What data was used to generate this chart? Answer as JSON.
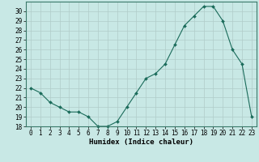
{
  "x": [
    0,
    1,
    2,
    3,
    4,
    5,
    6,
    7,
    8,
    9,
    10,
    11,
    12,
    13,
    14,
    15,
    16,
    17,
    18,
    19,
    20,
    21,
    22,
    23
  ],
  "y": [
    22,
    21.5,
    20.5,
    20,
    19.5,
    19.5,
    19,
    18,
    18,
    18.5,
    20,
    21.5,
    23,
    23.5,
    24.5,
    26.5,
    28.5,
    29.5,
    30.5,
    30.5,
    29,
    26,
    24.5,
    19
  ],
  "xlabel": "Humidex (Indice chaleur)",
  "xlim": [
    -0.5,
    23.5
  ],
  "ylim": [
    18,
    31
  ],
  "yticks": [
    18,
    19,
    20,
    21,
    22,
    23,
    24,
    25,
    26,
    27,
    28,
    29,
    30
  ],
  "xticks": [
    0,
    1,
    2,
    3,
    4,
    5,
    6,
    7,
    8,
    9,
    10,
    11,
    12,
    13,
    14,
    15,
    16,
    17,
    18,
    19,
    20,
    21,
    22,
    23
  ],
  "line_color": "#1a6b5a",
  "marker": "D",
  "marker_size": 2.0,
  "bg_color": "#c8e8e5",
  "grid_color": "#b0ccc9",
  "tick_fontsize": 5.5,
  "label_fontsize": 6.5,
  "line_width": 0.8
}
